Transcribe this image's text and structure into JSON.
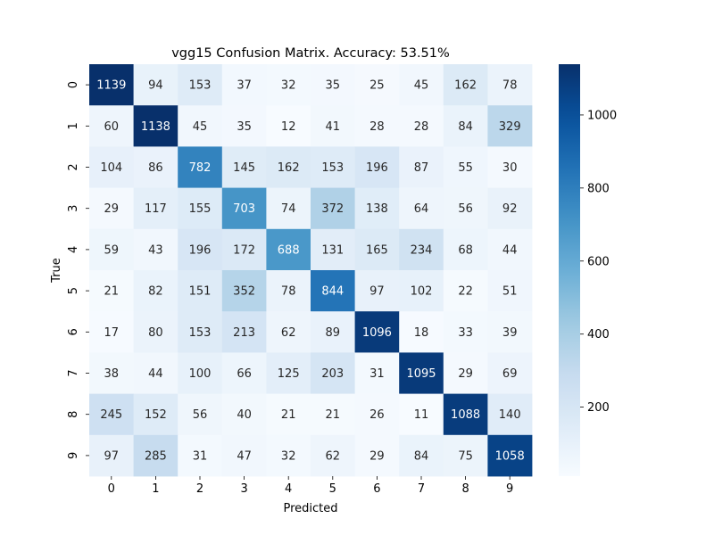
{
  "chart_data": {
    "type": "heatmap",
    "title": "vgg15 Confusion Matrix. Accuracy: 53.51%",
    "xlabel": "Predicted",
    "ylabel": "True",
    "x_categories": [
      "0",
      "1",
      "2",
      "3",
      "4",
      "5",
      "6",
      "7",
      "8",
      "9"
    ],
    "y_categories": [
      "0",
      "1",
      "2",
      "3",
      "4",
      "5",
      "6",
      "7",
      "8",
      "9"
    ],
    "values": [
      [
        1139,
        94,
        153,
        37,
        32,
        35,
        25,
        45,
        162,
        78
      ],
      [
        60,
        1138,
        45,
        35,
        12,
        41,
        28,
        28,
        84,
        329
      ],
      [
        104,
        86,
        782,
        145,
        162,
        153,
        196,
        87,
        55,
        30
      ],
      [
        29,
        117,
        155,
        703,
        74,
        372,
        138,
        64,
        56,
        92
      ],
      [
        59,
        43,
        196,
        172,
        688,
        131,
        165,
        234,
        68,
        44
      ],
      [
        21,
        82,
        151,
        352,
        78,
        844,
        97,
        102,
        22,
        51
      ],
      [
        17,
        80,
        153,
        213,
        62,
        89,
        1096,
        18,
        33,
        39
      ],
      [
        38,
        44,
        100,
        66,
        125,
        203,
        31,
        1095,
        29,
        69
      ],
      [
        245,
        152,
        56,
        40,
        21,
        21,
        26,
        11,
        1088,
        140
      ],
      [
        97,
        285,
        31,
        47,
        32,
        62,
        29,
        84,
        75,
        1058
      ]
    ],
    "colormap": "Blues",
    "colorbar": {
      "range": [
        11,
        1139
      ],
      "ticks": [
        200,
        400,
        600,
        800,
        1000
      ]
    },
    "grid": false,
    "legend": "colorbar-right"
  }
}
